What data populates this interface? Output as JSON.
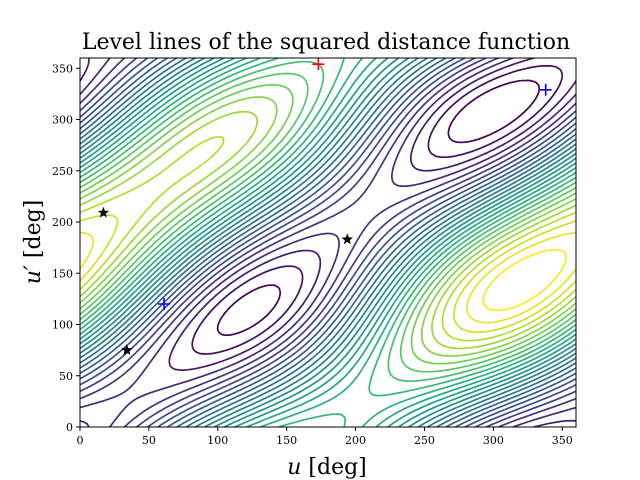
{
  "chart_data": {
    "type": "contour",
    "title": "Level lines of the squared distance function",
    "xlabel": {
      "var": "u",
      "unit": " [deg]"
    },
    "ylabel": {
      "var": "u′",
      "unit": " [deg]"
    },
    "xlim": [
      0,
      360
    ],
    "ylim": [
      0,
      360
    ],
    "xticks": [
      0,
      50,
      100,
      150,
      200,
      250,
      300,
      350
    ],
    "yticks": [
      0,
      50,
      100,
      150,
      200,
      250,
      300,
      350
    ],
    "grid": false,
    "colormap": "viridis",
    "levels": 28,
    "markers": [
      {
        "kind": "plus",
        "color": "#ff0000",
        "x": 173,
        "y": 354
      },
      {
        "kind": "plus",
        "color": "#0000ff",
        "x": 338,
        "y": 329
      },
      {
        "kind": "plus",
        "color": "#0000ff",
        "x": 61,
        "y": 120
      },
      {
        "kind": "star",
        "color": "#000000",
        "x": 17,
        "y": 209
      },
      {
        "kind": "star",
        "color": "#000000",
        "x": 194,
        "y": 183
      },
      {
        "kind": "star",
        "color": "#000000",
        "x": 34,
        "y": 75
      }
    ]
  }
}
